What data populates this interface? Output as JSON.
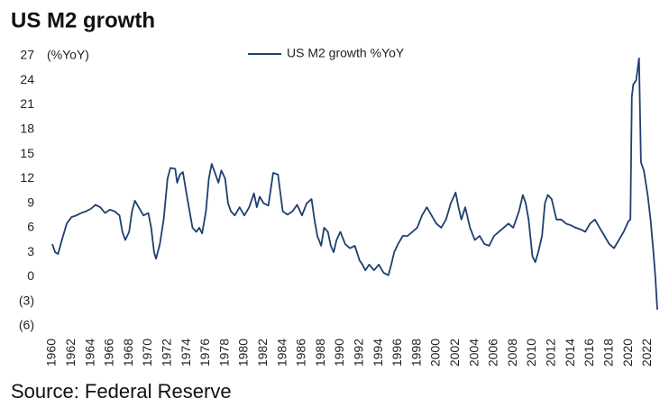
{
  "chart_data": {
    "type": "line",
    "title": "US M2 growth",
    "y_axis_label": "(%YoY)",
    "source": "Source: Federal Reserve",
    "xlim": [
      1960,
      2023
    ],
    "ylim": [
      -6,
      27
    ],
    "xticks": [
      1960,
      1962,
      1964,
      1966,
      1968,
      1970,
      1972,
      1974,
      1976,
      1978,
      1980,
      1982,
      1984,
      1986,
      1988,
      1990,
      1992,
      1994,
      1996,
      1998,
      2000,
      2002,
      2004,
      2006,
      2008,
      2010,
      2012,
      2014,
      2016,
      2018,
      2020,
      2022
    ],
    "yticks": [
      27,
      24,
      21,
      18,
      15,
      12,
      9,
      6,
      3,
      0,
      {
        "value": -3,
        "label": "(3)"
      },
      {
        "value": -6,
        "label": "(6)"
      }
    ],
    "legend": "top",
    "x": [
      1960,
      1960.3,
      1960.6,
      1961,
      1961.5,
      1962,
      1962.5,
      1963,
      1963.5,
      1964,
      1964.5,
      1965,
      1965.5,
      1966,
      1966.5,
      1967,
      1967.3,
      1967.6,
      1968,
      1968.3,
      1968.6,
      1969,
      1969.5,
      1970,
      1970.3,
      1970.6,
      1970.8,
      1971.2,
      1971.6,
      1972,
      1972.3,
      1972.8,
      1973,
      1973.3,
      1973.6,
      1974,
      1974.3,
      1974.6,
      1975,
      1975.3,
      1975.6,
      1976,
      1976.3,
      1976.6,
      1977,
      1977.3,
      1977.6,
      1978,
      1978.3,
      1978.6,
      1979,
      1979.5,
      1980,
      1980.5,
      1981,
      1981.3,
      1981.6,
      1982,
      1982.5,
      1983,
      1983.5,
      1984,
      1984.5,
      1985,
      1985.5,
      1986,
      1986.5,
      1987,
      1987.3,
      1987.6,
      1988,
      1988.3,
      1988.7,
      1989,
      1989.3,
      1989.6,
      1990,
      1990.5,
      1991,
      1991.5,
      1992,
      1992.3,
      1992.6,
      1993,
      1993.5,
      1994,
      1994.5,
      1995,
      1995.3,
      1995.6,
      1996,
      1996.5,
      1997,
      1997.5,
      1998,
      1998.5,
      1999,
      1999.5,
      2000,
      2000.5,
      2001,
      2001.5,
      2002,
      2002.3,
      2002.6,
      2003,
      2003.5,
      2004,
      2004.5,
      2005,
      2005.5,
      2006,
      2006.5,
      2007,
      2007.5,
      2008,
      2008.3,
      2008.6,
      2009,
      2009.3,
      2009.6,
      2010,
      2010.3,
      2010.6,
      2011,
      2011.3,
      2011.6,
      2012,
      2012.5,
      2013,
      2013.5,
      2014,
      2014.5,
      2015,
      2015.5,
      2016,
      2016.5,
      2017,
      2017.5,
      2018,
      2018.5,
      2019,
      2019.5,
      2020,
      2020.2,
      2020.35,
      2020.5,
      2020.8,
      2021.1,
      2021.3,
      2021.6,
      2022,
      2022.3,
      2022.6,
      2022.8,
      2023
    ],
    "series": [
      {
        "name": "US M2 growth %YoY",
        "color": "#1f3f6e",
        "values": [
          4,
          3,
          2.8,
          4.5,
          6.5,
          7.3,
          7.5,
          7.8,
          8,
          8.3,
          8.8,
          8.5,
          7.8,
          8.2,
          8,
          7.5,
          5.5,
          4.5,
          5.5,
          8,
          9.3,
          8.5,
          7.5,
          7.8,
          6,
          3,
          2.2,
          4,
          7,
          12,
          13.3,
          13.2,
          11.5,
          12.5,
          12.8,
          10,
          8,
          6,
          5.5,
          6,
          5.3,
          8,
          12,
          13.8,
          12.5,
          11.5,
          13,
          12,
          9,
          8,
          7.5,
          8.5,
          7.5,
          8.5,
          10.2,
          8.5,
          9.8,
          9,
          8.7,
          12.7,
          12.5,
          8,
          7.6,
          8,
          8.8,
          7.5,
          9,
          9.5,
          7,
          5,
          3.8,
          6,
          5.5,
          3.8,
          3,
          4.5,
          5.5,
          4,
          3.5,
          3.8,
          2,
          1.5,
          0.8,
          1.5,
          0.8,
          1.5,
          0.5,
          0.2,
          1.5,
          3,
          4,
          5,
          5,
          5.5,
          6,
          7.5,
          8.5,
          7.5,
          6.5,
          6,
          7,
          9,
          10.3,
          8.5,
          7,
          8.5,
          6,
          4.5,
          5,
          4,
          3.8,
          5,
          5.5,
          6,
          6.5,
          6,
          7,
          8,
          10,
          9,
          7,
          2.5,
          1.8,
          3,
          5,
          9,
          10,
          9.5,
          7,
          7,
          6.5,
          6.3,
          6,
          5.8,
          5.5,
          6.5,
          7,
          6,
          5,
          4,
          3.5,
          4.5,
          5.5,
          6.8,
          7,
          22,
          23.5,
          24,
          26.7,
          14,
          13,
          10,
          7,
          3,
          0,
          -4
        ]
      }
    ]
  }
}
